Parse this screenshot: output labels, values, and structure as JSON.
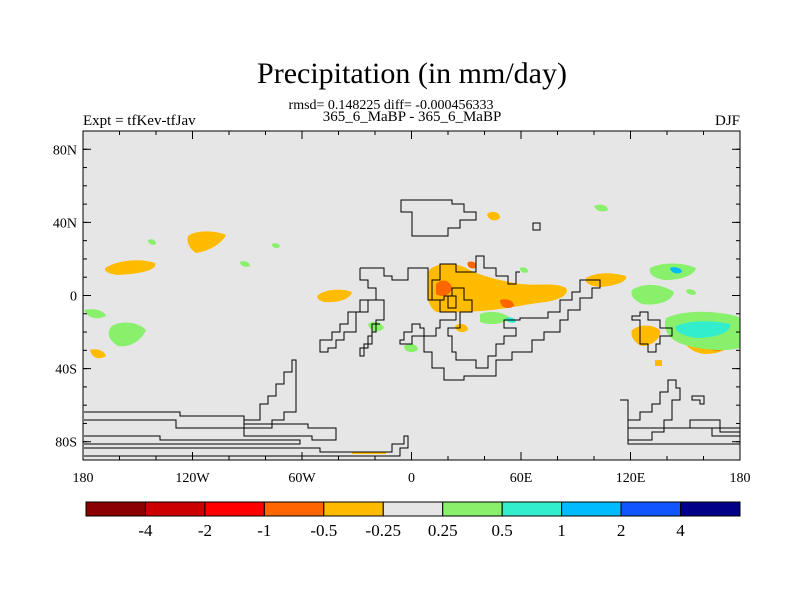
{
  "title": "Precipitation (in mm/day)",
  "stats_line": "rmsd= 0.148225 diff= -0.000456333",
  "left_label": "Expt = tfKev-tfJav",
  "center_label": "365_6_MaBP - 365_6_MaBP",
  "right_label": "DJF",
  "x_ticks": [
    {
      "value": -180,
      "label": "180"
    },
    {
      "value": -120,
      "label": "120W"
    },
    {
      "value": -60,
      "label": "60W"
    },
    {
      "value": 0,
      "label": "0"
    },
    {
      "value": 60,
      "label": "60E"
    },
    {
      "value": 120,
      "label": "120E"
    },
    {
      "value": 180,
      "label": "180"
    }
  ],
  "y_ticks": [
    {
      "value": 80,
      "label": "80N"
    },
    {
      "value": 40,
      "label": "40N"
    },
    {
      "value": 0,
      "label": "0"
    },
    {
      "value": -40,
      "label": "40S"
    },
    {
      "value": -80,
      "label": "80S"
    }
  ],
  "lon_range": [
    -180,
    180
  ],
  "lat_range": [
    -90,
    90
  ],
  "colorbar": {
    "colors": [
      "#8b0000",
      "#cc0000",
      "#ff0000",
      "#ff6600",
      "#ffbb00",
      "#e6e6e6",
      "#88f06a",
      "#33eecc",
      "#00bbff",
      "#1155ff",
      "#000088"
    ],
    "labels": [
      "-4",
      "-2",
      "-1",
      "-0.5",
      "-0.25",
      "0.25",
      "0.5",
      "1",
      "2",
      "4"
    ]
  },
  "colors": {
    "background": "#e6e6e6",
    "coast": "#000000"
  }
}
